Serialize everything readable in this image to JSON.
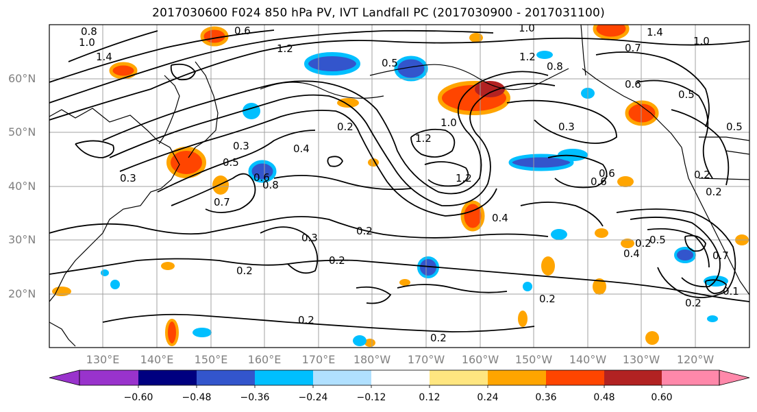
{
  "title": "2017030600 F024 850 hPa PV, IVT Landfall PC (2017030900 - 2017031100)",
  "map": {
    "lat_labels": [
      "60°N",
      "50°N",
      "40°N",
      "30°N",
      "20°N"
    ],
    "lon_labels": [
      "130°E",
      "140°E",
      "150°E",
      "160°E",
      "170°E",
      "180°W",
      "170°W",
      "160°W",
      "150°W",
      "140°W",
      "130°W",
      "120°W"
    ],
    "extent": {
      "lon_min": 120,
      "lon_max": 250,
      "lat_min": 10,
      "lat_max": 70
    },
    "contour_labels": [
      "0.8",
      "1.0",
      "1.4",
      "1.2",
      "0.5",
      "0.6",
      "1.0",
      "0.7",
      "1.2",
      "1.4",
      "1.0",
      "0.5",
      "0.8",
      "0.6",
      "0.5",
      "0.3",
      "1.2",
      "0.2",
      "1.0",
      "1.2",
      "0.3",
      "0.4",
      "0.5",
      "0.6",
      "0.3",
      "0.8",
      "0.7",
      "0.2",
      "0.2",
      "0.4",
      "0.3",
      "0.2",
      "0.2",
      "0.2",
      "0.2",
      "0.2",
      "0.2",
      "0.2",
      "0.6",
      "0.6",
      "0.4",
      "0.2",
      "0.5",
      "0.7",
      "0.1"
    ],
    "grid_color": "#a0a0a0",
    "contour_color": "#000000"
  },
  "colorbar": {
    "colors": [
      "#9933cc",
      "#000080",
      "#3355cc",
      "#00bfff",
      "#b0e0ff",
      "#ffffff",
      "#ffe680",
      "#ffa500",
      "#ff4500",
      "#b22222",
      "#ff88aa"
    ],
    "tick_labels": [
      "−0.60",
      "−0.48",
      "−0.36",
      "−0.24",
      "−0.12",
      "0.12",
      "0.24",
      "0.36",
      "0.48",
      "0.60"
    ]
  }
}
